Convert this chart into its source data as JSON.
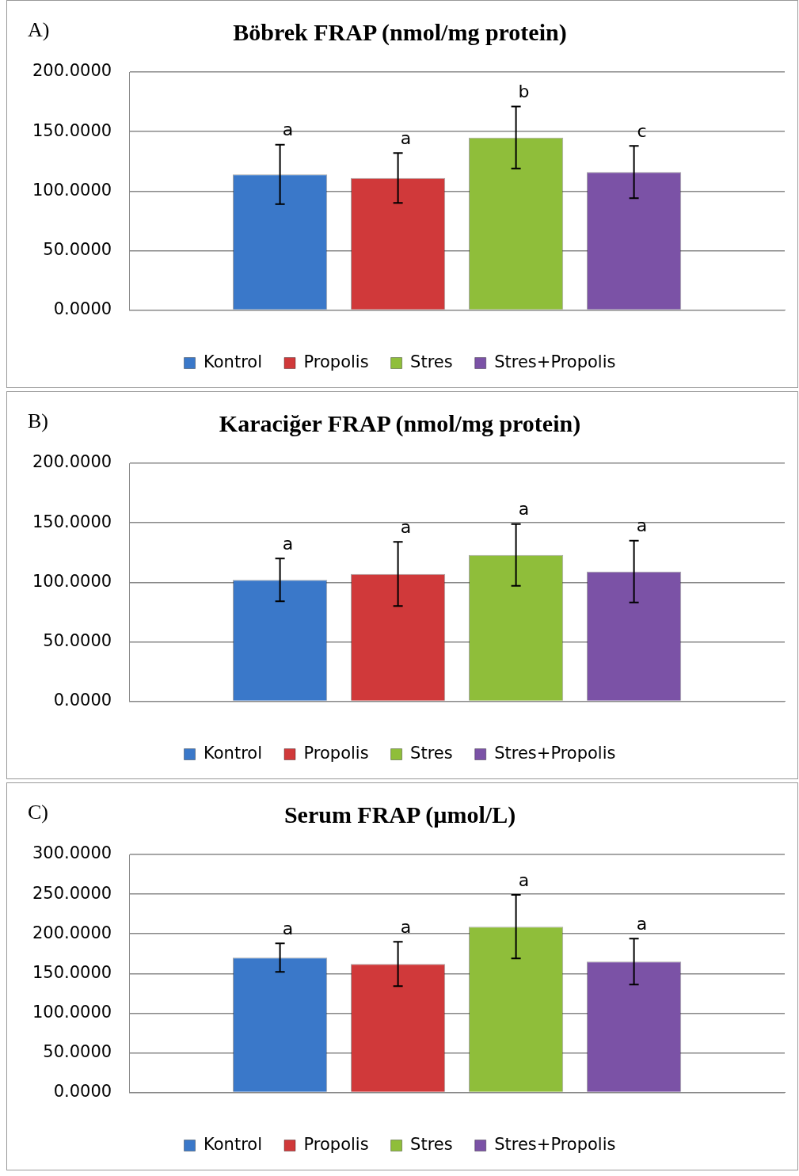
{
  "chart_data": [
    {
      "type": "bar",
      "title": "Böbrek FRAP (nmol/mg protein)",
      "annotations": [
        "A)"
      ],
      "categories": [
        null
      ],
      "ylim": [
        0,
        200
      ],
      "yticks": [
        {
          "value": 0,
          "label": "0.0000"
        },
        {
          "value": 50,
          "label": "50.0000"
        },
        {
          "value": 100,
          "label": "100.0000"
        },
        {
          "value": 150,
          "label": "150.0000"
        },
        {
          "value": 200,
          "label": "200.0000"
        }
      ],
      "grid": "y",
      "legend": "bottom",
      "series": [
        {
          "name": "Kontrol",
          "color": "#3a78c9",
          "values": [
            114
          ],
          "errors": [
            25
          ],
          "value_labels": [
            "a"
          ]
        },
        {
          "name": "Propolis",
          "color": "#d0393a",
          "values": [
            111
          ],
          "errors": [
            21
          ],
          "value_labels": [
            "a"
          ]
        },
        {
          "name": "Stres",
          "color": "#8fbe3a",
          "values": [
            145
          ],
          "errors": [
            26
          ],
          "value_labels": [
            "b"
          ]
        },
        {
          "name": "Stres+Propolis",
          "color": "#7b52a6",
          "values": [
            116
          ],
          "errors": [
            22
          ],
          "value_labels": [
            "c"
          ]
        }
      ]
    },
    {
      "type": "bar",
      "title": "Karaciğer FRAP (nmol/mg protein)",
      "annotations": [
        "B)"
      ],
      "categories": [
        null
      ],
      "ylim": [
        0,
        200
      ],
      "yticks": [
        {
          "value": 0,
          "label": "0.0000"
        },
        {
          "value": 50,
          "label": "50.0000"
        },
        {
          "value": 100,
          "label": "100.0000"
        },
        {
          "value": 150,
          "label": "150.0000"
        },
        {
          "value": 200,
          "label": "200.0000"
        }
      ],
      "grid": "y",
      "legend": "bottom",
      "series": [
        {
          "name": "Kontrol",
          "color": "#3a78c9",
          "values": [
            102
          ],
          "errors": [
            18
          ],
          "value_labels": [
            "a"
          ]
        },
        {
          "name": "Propolis",
          "color": "#d0393a",
          "values": [
            107
          ],
          "errors": [
            27
          ],
          "value_labels": [
            "a"
          ]
        },
        {
          "name": "Stres",
          "color": "#8fbe3a",
          "values": [
            123
          ],
          "errors": [
            26
          ],
          "value_labels": [
            "a"
          ]
        },
        {
          "name": "Stres+Propolis",
          "color": "#7b52a6",
          "values": [
            109
          ],
          "errors": [
            26
          ],
          "value_labels": [
            "a"
          ]
        }
      ]
    },
    {
      "type": "bar",
      "title": "Serum FRAP (µmol/L)",
      "annotations": [
        "C)"
      ],
      "categories": [
        null
      ],
      "ylim": [
        0,
        300
      ],
      "yticks": [
        {
          "value": 0,
          "label": "0.0000"
        },
        {
          "value": 50,
          "label": "50.0000"
        },
        {
          "value": 100,
          "label": "100.0000"
        },
        {
          "value": 150,
          "label": "150.0000"
        },
        {
          "value": 200,
          "label": "200.0000"
        },
        {
          "value": 250,
          "label": "250.0000"
        },
        {
          "value": 300,
          "label": "300.0000"
        }
      ],
      "grid": "y",
      "legend": "bottom",
      "series": [
        {
          "name": "Kontrol",
          "color": "#3a78c9",
          "values": [
            170
          ],
          "errors": [
            18
          ],
          "value_labels": [
            "a"
          ]
        },
        {
          "name": "Propolis",
          "color": "#d0393a",
          "values": [
            162
          ],
          "errors": [
            28
          ],
          "value_labels": [
            "a"
          ]
        },
        {
          "name": "Stres",
          "color": "#8fbe3a",
          "values": [
            209
          ],
          "errors": [
            40
          ],
          "value_labels": [
            "a"
          ]
        },
        {
          "name": "Stres+Propolis",
          "color": "#7b52a6",
          "values": [
            165
          ],
          "errors": [
            29
          ],
          "value_labels": [
            "a"
          ]
        }
      ]
    }
  ]
}
